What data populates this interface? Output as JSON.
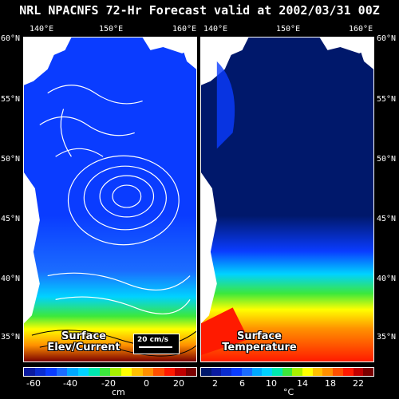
{
  "title": "NRL NPACNFS 72-Hr Forecast valid at 2002/03/31 00Z",
  "lon_labels": [
    "140°E",
    "150°E",
    "160°E"
  ],
  "lat_labels": [
    "60°N",
    "55°N",
    "50°N",
    "45°N",
    "40°N",
    "35°N"
  ],
  "left_panel": {
    "label_line1": "Surface",
    "label_line2": "Elev/Current",
    "scale_label": "20 cm/s",
    "colorbar_ticks": [
      "-60",
      "-40",
      "-20",
      "0",
      "20"
    ],
    "colorbar_unit": "cm"
  },
  "right_panel": {
    "label_line1": "Surface",
    "label_line2": "Temperature",
    "colorbar_ticks": [
      "2",
      "6",
      "10",
      "14",
      "18",
      "22"
    ],
    "colorbar_unit": "°C"
  },
  "colors": {
    "deep_blue": "#00186b",
    "blue": "#0a3cff",
    "cyan": "#00d2ff",
    "green": "#3ce83c",
    "yellow": "#ffff00",
    "orange": "#ff9000",
    "red": "#ff1a00",
    "dark_red": "#7a0000",
    "land": "#ffffff"
  }
}
